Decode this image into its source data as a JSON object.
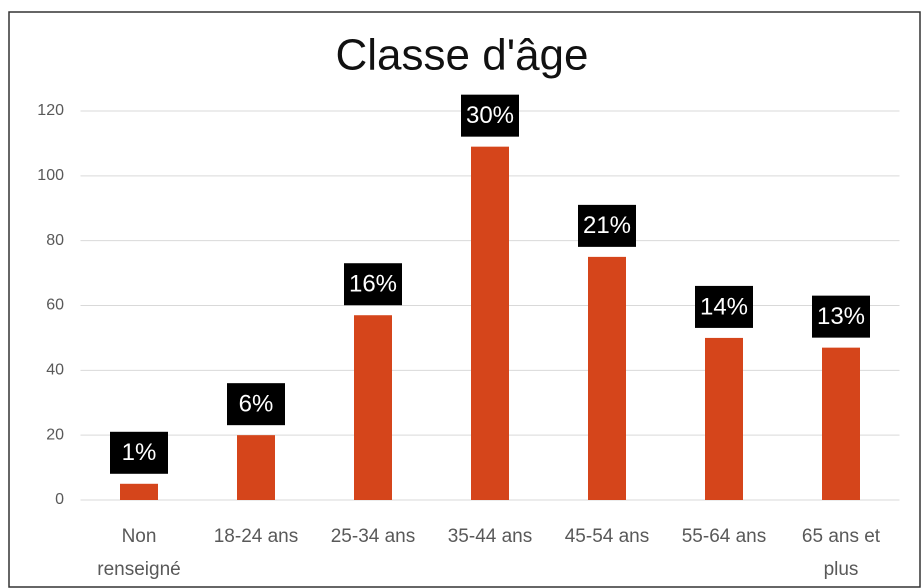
{
  "chart_data": {
    "type": "bar",
    "title": "Classe d'âge",
    "categories": [
      "Non renseigné",
      "18-24 ans",
      "25-34 ans",
      "35-44 ans",
      "45-54 ans",
      "55-64 ans",
      "65 ans et plus"
    ],
    "values": [
      5,
      20,
      57,
      109,
      75,
      50,
      47
    ],
    "annotations": [
      "1%",
      "6%",
      "16%",
      "30%",
      "21%",
      "14%",
      "13%"
    ],
    "color": "#d5451b",
    "ylim": [
      0,
      120
    ],
    "yticks": [
      0,
      20,
      40,
      60,
      80,
      100,
      120
    ],
    "grid": true
  }
}
